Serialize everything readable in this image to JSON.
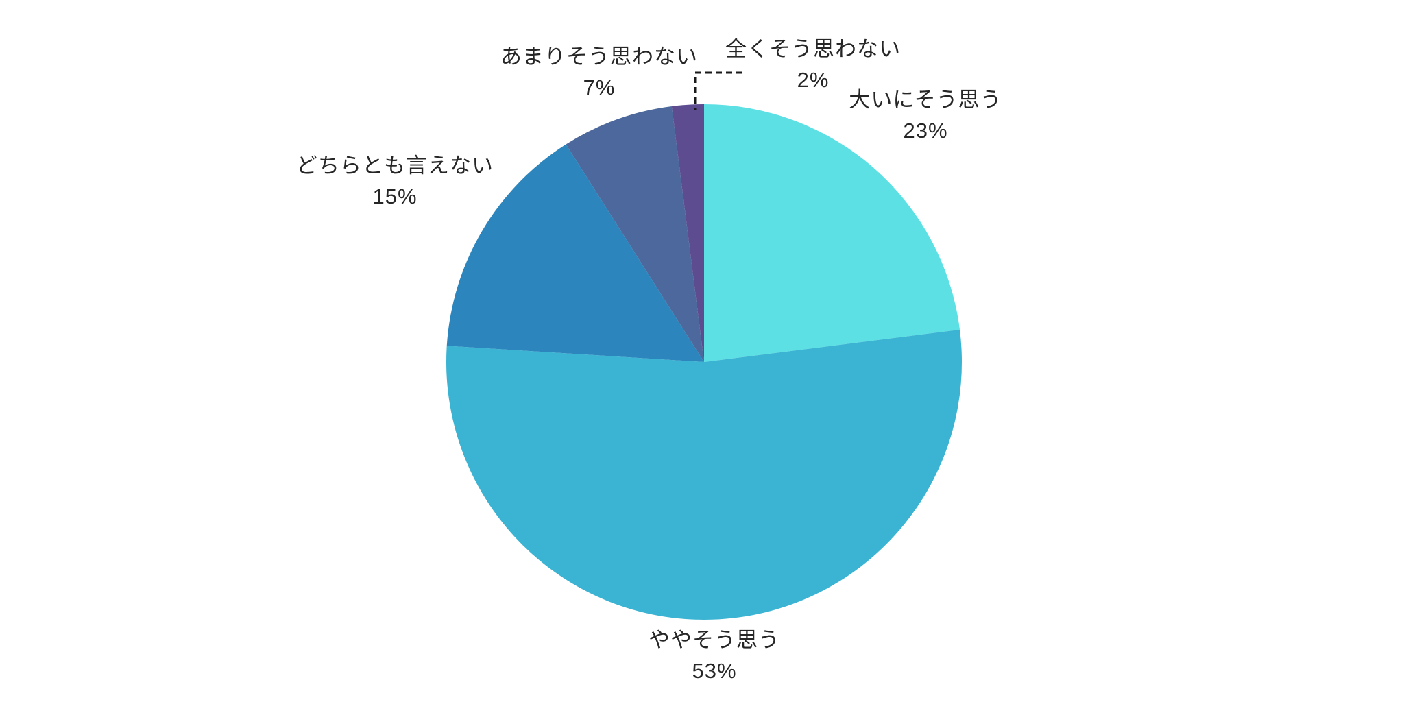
{
  "chart_data": {
    "type": "pie",
    "title": "",
    "legend": "none",
    "labels_position": "outside",
    "start_angle_deg": 0,
    "direction": "clockwise",
    "background_color": "#ffffff",
    "text_color": "#262626",
    "slices": [
      {
        "key": "ooini",
        "label": "大いにそう思う",
        "value_pct": 23,
        "pct_label": "23%",
        "color": "#5CE0E4"
      },
      {
        "key": "yaya",
        "label": "ややそう思う",
        "value_pct": 53,
        "pct_label": "53%",
        "color": "#3BB4D3"
      },
      {
        "key": "dochira",
        "label": "どちらとも言えない",
        "value_pct": 15,
        "pct_label": "15%",
        "color": "#2C86BD"
      },
      {
        "key": "amari",
        "label": "あまりそう思わない",
        "value_pct": 7,
        "pct_label": "7%",
        "color": "#4C689D"
      },
      {
        "key": "mattaku",
        "label": "全くそう思わない",
        "value_pct": 2,
        "pct_label": "2%",
        "color": "#5E4C90"
      }
    ],
    "leader_line": {
      "target_slice": "全くそう思わない",
      "style": "dashed",
      "color": "#1a1a1a"
    }
  }
}
